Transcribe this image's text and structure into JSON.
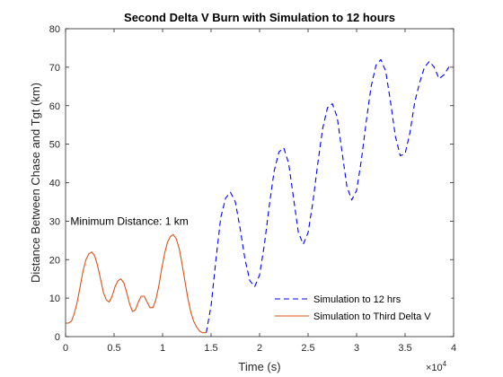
{
  "chart_data": {
    "type": "line",
    "title": "Second Delta V Burn with Simulation to 12 hours",
    "xlabel": "Time (s)",
    "ylabel": "Distance Between Chase and Tgt (km)",
    "x_exponent_label": "×10",
    "x_exponent_power": "4",
    "xlim": [
      0,
      40000
    ],
    "ylim": [
      0,
      80
    ],
    "x_ticks": [
      0,
      5000,
      10000,
      15000,
      20000,
      25000,
      30000,
      35000,
      40000
    ],
    "x_tick_labels": [
      "0",
      "0.5",
      "1",
      "1.5",
      "2",
      "2.5",
      "3",
      "3.5",
      "4"
    ],
    "y_ticks": [
      0,
      10,
      20,
      30,
      40,
      50,
      60,
      70,
      80
    ],
    "y_tick_labels": [
      "0",
      "10",
      "20",
      "30",
      "40",
      "50",
      "60",
      "70",
      "80"
    ],
    "grid": false,
    "legend_position": "bottom-right",
    "annotation": {
      "text": "Minimum Distance: 1 km",
      "x": 500,
      "y": 30
    },
    "series": [
      {
        "name": "Simulation to 12 hrs",
        "color": "#0000ff",
        "style": "dashed",
        "x": [
          14500,
          15000,
          15500,
          16000,
          16500,
          17000,
          17500,
          18000,
          18500,
          19000,
          19500,
          20000,
          20500,
          21000,
          21500,
          22000,
          22500,
          23000,
          23500,
          24000,
          24500,
          25000,
          25500,
          26000,
          26500,
          27000,
          27500,
          28000,
          28500,
          29000,
          29500,
          30000,
          30500,
          31000,
          31500,
          32000,
          32500,
          33000,
          33500,
          34000,
          34500,
          35000,
          35500,
          36000,
          36500,
          37000,
          37500,
          38000,
          38500,
          39000,
          39500,
          39900
        ],
        "values": [
          1,
          8,
          20,
          31,
          36,
          37.5,
          35,
          28,
          20,
          14.5,
          13,
          16,
          24,
          34,
          43,
          48,
          49,
          45,
          36,
          27,
          24,
          27,
          35,
          45,
          54,
          59.5,
          60.5,
          57,
          48,
          39,
          35.5,
          38,
          46,
          56,
          65,
          70.5,
          72,
          69,
          61,
          52,
          47,
          47.5,
          53,
          61,
          66,
          70,
          71.5,
          70,
          67,
          68,
          70,
          70.5
        ]
      },
      {
        "name": "Simulation to Third Delta V",
        "color": "#d95319",
        "style": "solid",
        "x": [
          0,
          300,
          600,
          900,
          1200,
          1500,
          1800,
          2100,
          2400,
          2700,
          3000,
          3300,
          3600,
          3900,
          4200,
          4500,
          4800,
          5100,
          5400,
          5700,
          6000,
          6300,
          6600,
          6900,
          7200,
          7500,
          7800,
          8100,
          8400,
          8700,
          9000,
          9300,
          9600,
          9900,
          10200,
          10500,
          10800,
          11100,
          11400,
          11700,
          12000,
          12300,
          12600,
          12900,
          13200,
          13500,
          13800,
          14100,
          14400,
          14500
        ],
        "values": [
          3.5,
          3.5,
          4,
          6,
          9,
          13,
          17,
          20,
          21.5,
          22,
          21,
          18.5,
          15,
          11.5,
          9.5,
          9,
          10.5,
          13,
          14.5,
          15,
          14,
          11.5,
          8.5,
          6.5,
          7,
          9,
          10.5,
          10.5,
          9,
          7.5,
          7.5,
          9.5,
          13,
          17.5,
          21.5,
          24.5,
          26,
          26.5,
          25.5,
          23,
          19,
          14.5,
          10,
          6.5,
          4,
          2.5,
          1.5,
          1,
          1,
          1
        ]
      }
    ]
  }
}
